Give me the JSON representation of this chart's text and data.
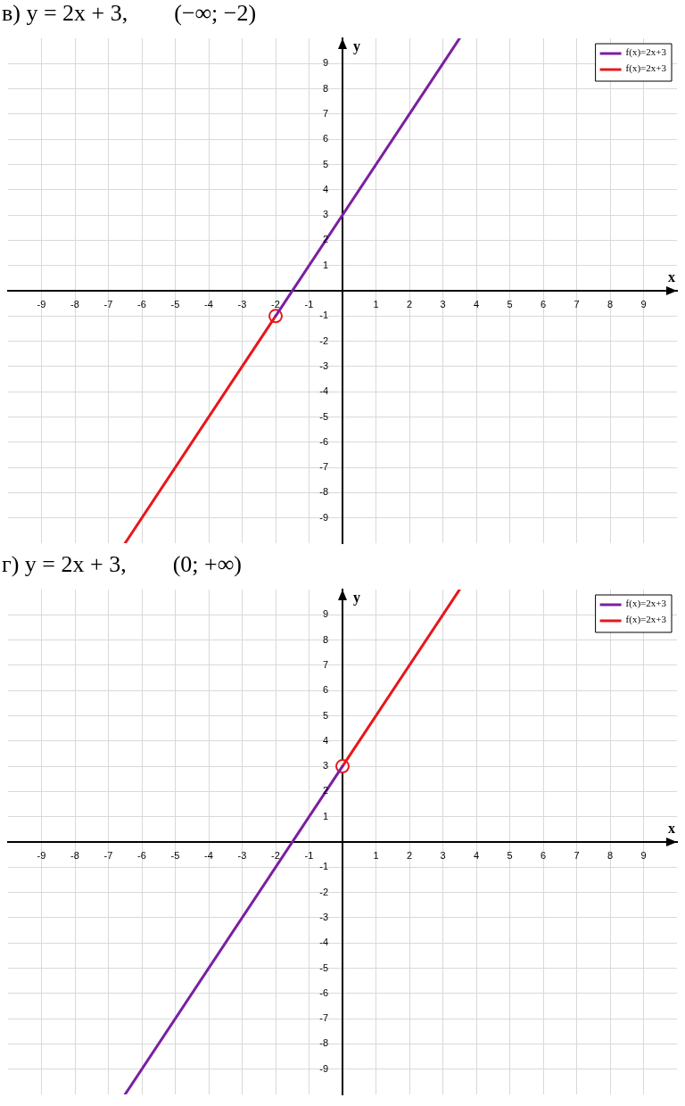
{
  "chart_data": [
    {
      "type": "line",
      "title": "в) y = 2x + 3,        (−∞; −2)",
      "xlabel": "x",
      "ylabel": "y",
      "xlim": [
        -10,
        10
      ],
      "ylim": [
        -10,
        10
      ],
      "xticks": [
        -9,
        -8,
        -7,
        -6,
        -5,
        -4,
        -3,
        -2,
        -1,
        1,
        2,
        3,
        4,
        5,
        6,
        7,
        8,
        9
      ],
      "yticks": [
        -9,
        -8,
        -7,
        -6,
        -5,
        -4,
        -3,
        -2,
        -1,
        1,
        2,
        3,
        4,
        5,
        6,
        7,
        8,
        9
      ],
      "grid": true,
      "legend": "top right",
      "series": [
        {
          "name": "f(x)=2x+3",
          "color": "#7b1fa2",
          "x": [
            -2,
            3.5
          ],
          "values": [
            -1,
            10
          ]
        },
        {
          "name": "f(x)=2x+3",
          "color": "#e8161b",
          "x": [
            -6.5,
            -2
          ],
          "values": [
            -10,
            -1
          ]
        },
        {
          "type": "scatter",
          "marker": "circle",
          "color": "#e8161b",
          "x": [
            -2
          ],
          "values": [
            -1
          ]
        }
      ]
    },
    {
      "type": "line",
      "title": "г) y = 2x + 3,        (0; +∞)",
      "xlabel": "x",
      "ylabel": "y",
      "xlim": [
        -10,
        10
      ],
      "ylim": [
        -10,
        10
      ],
      "xticks": [
        -9,
        -8,
        -7,
        -6,
        -5,
        -4,
        -3,
        -2,
        -1,
        1,
        2,
        3,
        4,
        5,
        6,
        7,
        8,
        9
      ],
      "yticks": [
        -9,
        -8,
        -7,
        -6,
        -5,
        -4,
        -3,
        -2,
        -1,
        1,
        2,
        3,
        4,
        5,
        6,
        7,
        8,
        9
      ],
      "grid": true,
      "legend": "top right",
      "series": [
        {
          "name": "f(x)=2x+3",
          "color": "#7b1fa2",
          "x": [
            -6.5,
            0
          ],
          "values": [
            -10,
            3
          ]
        },
        {
          "name": "f(x)=2x+3",
          "color": "#e8161b",
          "x": [
            0,
            3.5
          ],
          "values": [
            3,
            10
          ]
        },
        {
          "type": "scatter",
          "marker": "circle",
          "color": "#e8161b",
          "x": [
            0
          ],
          "values": [
            3
          ]
        }
      ]
    }
  ]
}
